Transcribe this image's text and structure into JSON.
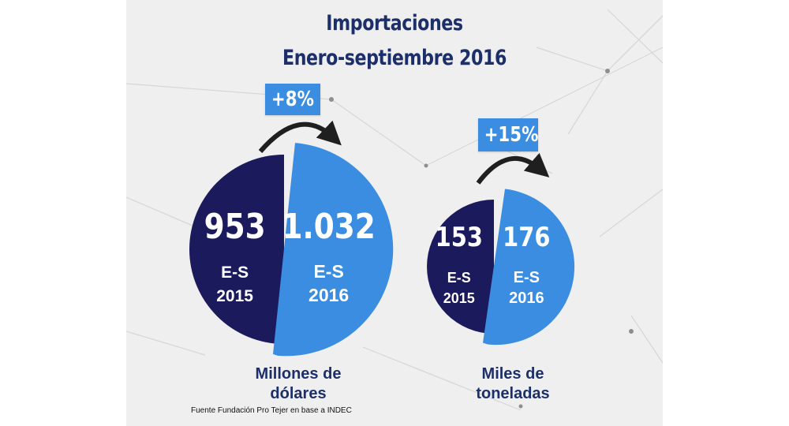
{
  "title": "Importaciones",
  "subtitle": "Enero-septiembre 2016",
  "source": "Fuente Fundación Pro Tejer en base a INDEC",
  "colors": {
    "dark": "#1a1a5c",
    "light": "#3a8de0",
    "text": "#1c2f6b",
    "background": "#efefef"
  },
  "chart_data": [
    {
      "type": "pie",
      "unit": "Millones de dólares",
      "change": "+8%",
      "slices": [
        {
          "value": 953,
          "label": "953",
          "period": [
            "E-S",
            "2015"
          ],
          "color": "#1a1a5c"
        },
        {
          "value": 1032,
          "label": "1.032",
          "period": [
            "E-S",
            "2016"
          ],
          "color": "#3a8de0"
        }
      ]
    },
    {
      "type": "pie",
      "unit": "Miles de toneladas",
      "change": "+15%",
      "slices": [
        {
          "value": 153,
          "label": "153",
          "period": [
            "E-S",
            "2015"
          ],
          "color": "#1a1a5c"
        },
        {
          "value": 176,
          "label": "176",
          "period": [
            "E-S",
            "2016"
          ],
          "color": "#3a8de0"
        }
      ]
    }
  ]
}
